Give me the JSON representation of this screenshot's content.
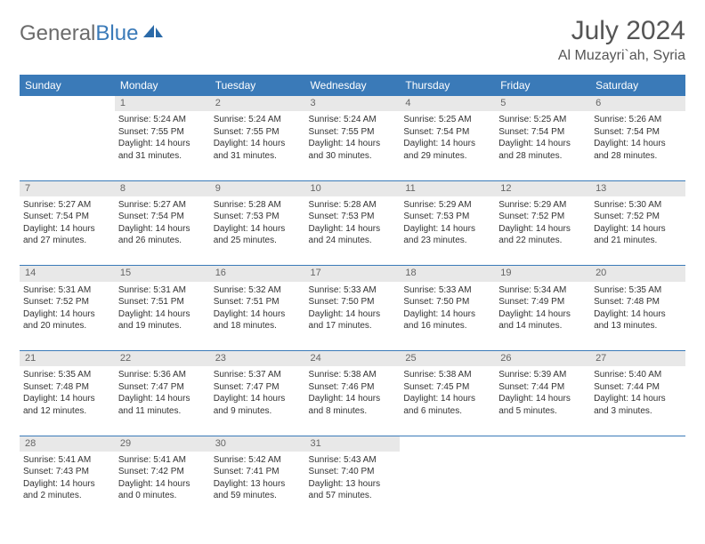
{
  "brand": {
    "general": "General",
    "blue": "Blue"
  },
  "title": "July 2024",
  "location": "Al Muzayri`ah, Syria",
  "colors": {
    "header_bg": "#3a7ab8",
    "header_text": "#ffffff",
    "daynum_bg": "#e8e8e8",
    "text": "#333333",
    "logo_gray": "#6b6b6b",
    "logo_blue": "#3a7ab8"
  },
  "day_headers": [
    "Sunday",
    "Monday",
    "Tuesday",
    "Wednesday",
    "Thursday",
    "Friday",
    "Saturday"
  ],
  "weeks": [
    {
      "nums": [
        "",
        "1",
        "2",
        "3",
        "4",
        "5",
        "6"
      ],
      "cells": [
        [],
        [
          "Sunrise: 5:24 AM",
          "Sunset: 7:55 PM",
          "Daylight: 14 hours",
          "and 31 minutes."
        ],
        [
          "Sunrise: 5:24 AM",
          "Sunset: 7:55 PM",
          "Daylight: 14 hours",
          "and 31 minutes."
        ],
        [
          "Sunrise: 5:24 AM",
          "Sunset: 7:55 PM",
          "Daylight: 14 hours",
          "and 30 minutes."
        ],
        [
          "Sunrise: 5:25 AM",
          "Sunset: 7:54 PM",
          "Daylight: 14 hours",
          "and 29 minutes."
        ],
        [
          "Sunrise: 5:25 AM",
          "Sunset: 7:54 PM",
          "Daylight: 14 hours",
          "and 28 minutes."
        ],
        [
          "Sunrise: 5:26 AM",
          "Sunset: 7:54 PM",
          "Daylight: 14 hours",
          "and 28 minutes."
        ]
      ]
    },
    {
      "nums": [
        "7",
        "8",
        "9",
        "10",
        "11",
        "12",
        "13"
      ],
      "cells": [
        [
          "Sunrise: 5:27 AM",
          "Sunset: 7:54 PM",
          "Daylight: 14 hours",
          "and 27 minutes."
        ],
        [
          "Sunrise: 5:27 AM",
          "Sunset: 7:54 PM",
          "Daylight: 14 hours",
          "and 26 minutes."
        ],
        [
          "Sunrise: 5:28 AM",
          "Sunset: 7:53 PM",
          "Daylight: 14 hours",
          "and 25 minutes."
        ],
        [
          "Sunrise: 5:28 AM",
          "Sunset: 7:53 PM",
          "Daylight: 14 hours",
          "and 24 minutes."
        ],
        [
          "Sunrise: 5:29 AM",
          "Sunset: 7:53 PM",
          "Daylight: 14 hours",
          "and 23 minutes."
        ],
        [
          "Sunrise: 5:29 AM",
          "Sunset: 7:52 PM",
          "Daylight: 14 hours",
          "and 22 minutes."
        ],
        [
          "Sunrise: 5:30 AM",
          "Sunset: 7:52 PM",
          "Daylight: 14 hours",
          "and 21 minutes."
        ]
      ]
    },
    {
      "nums": [
        "14",
        "15",
        "16",
        "17",
        "18",
        "19",
        "20"
      ],
      "cells": [
        [
          "Sunrise: 5:31 AM",
          "Sunset: 7:52 PM",
          "Daylight: 14 hours",
          "and 20 minutes."
        ],
        [
          "Sunrise: 5:31 AM",
          "Sunset: 7:51 PM",
          "Daylight: 14 hours",
          "and 19 minutes."
        ],
        [
          "Sunrise: 5:32 AM",
          "Sunset: 7:51 PM",
          "Daylight: 14 hours",
          "and 18 minutes."
        ],
        [
          "Sunrise: 5:33 AM",
          "Sunset: 7:50 PM",
          "Daylight: 14 hours",
          "and 17 minutes."
        ],
        [
          "Sunrise: 5:33 AM",
          "Sunset: 7:50 PM",
          "Daylight: 14 hours",
          "and 16 minutes."
        ],
        [
          "Sunrise: 5:34 AM",
          "Sunset: 7:49 PM",
          "Daylight: 14 hours",
          "and 14 minutes."
        ],
        [
          "Sunrise: 5:35 AM",
          "Sunset: 7:48 PM",
          "Daylight: 14 hours",
          "and 13 minutes."
        ]
      ]
    },
    {
      "nums": [
        "21",
        "22",
        "23",
        "24",
        "25",
        "26",
        "27"
      ],
      "cells": [
        [
          "Sunrise: 5:35 AM",
          "Sunset: 7:48 PM",
          "Daylight: 14 hours",
          "and 12 minutes."
        ],
        [
          "Sunrise: 5:36 AM",
          "Sunset: 7:47 PM",
          "Daylight: 14 hours",
          "and 11 minutes."
        ],
        [
          "Sunrise: 5:37 AM",
          "Sunset: 7:47 PM",
          "Daylight: 14 hours",
          "and 9 minutes."
        ],
        [
          "Sunrise: 5:38 AM",
          "Sunset: 7:46 PM",
          "Daylight: 14 hours",
          "and 8 minutes."
        ],
        [
          "Sunrise: 5:38 AM",
          "Sunset: 7:45 PM",
          "Daylight: 14 hours",
          "and 6 minutes."
        ],
        [
          "Sunrise: 5:39 AM",
          "Sunset: 7:44 PM",
          "Daylight: 14 hours",
          "and 5 minutes."
        ],
        [
          "Sunrise: 5:40 AM",
          "Sunset: 7:44 PM",
          "Daylight: 14 hours",
          "and 3 minutes."
        ]
      ]
    },
    {
      "nums": [
        "28",
        "29",
        "30",
        "31",
        "",
        "",
        ""
      ],
      "cells": [
        [
          "Sunrise: 5:41 AM",
          "Sunset: 7:43 PM",
          "Daylight: 14 hours",
          "and 2 minutes."
        ],
        [
          "Sunrise: 5:41 AM",
          "Sunset: 7:42 PM",
          "Daylight: 14 hours",
          "and 0 minutes."
        ],
        [
          "Sunrise: 5:42 AM",
          "Sunset: 7:41 PM",
          "Daylight: 13 hours",
          "and 59 minutes."
        ],
        [
          "Sunrise: 5:43 AM",
          "Sunset: 7:40 PM",
          "Daylight: 13 hours",
          "and 57 minutes."
        ],
        [],
        [],
        []
      ]
    }
  ]
}
